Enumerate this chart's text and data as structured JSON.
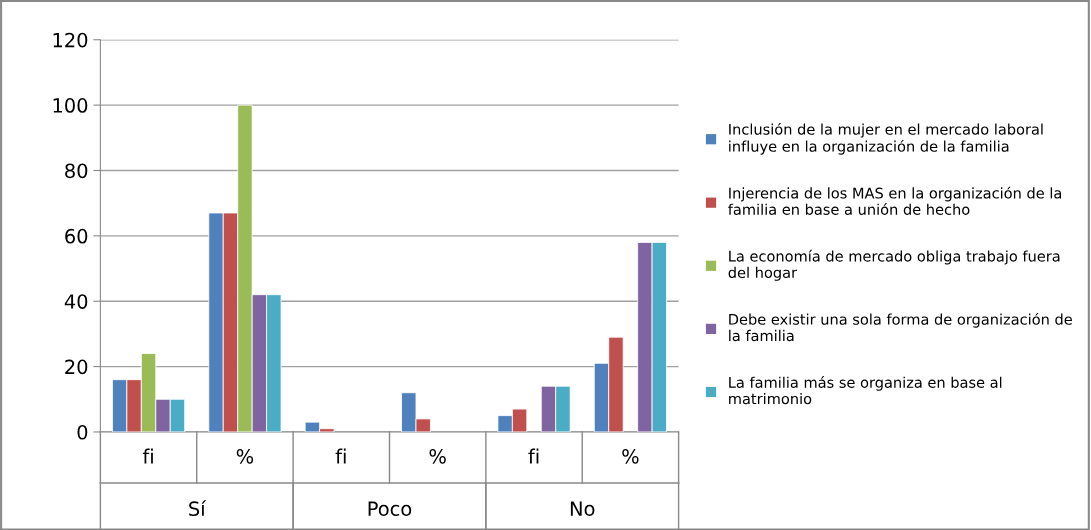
{
  "chart_data": {
    "type": "bar",
    "categories": [
      "fi",
      "%",
      "fi",
      "%",
      "fi",
      "%"
    ],
    "annotations": [
      "Sí",
      "Poco",
      "No"
    ],
    "series": [
      {
        "name": "Inclusión de la mujer en el mercado laboral influye en la organización de la familia",
        "color": "#4f81bd",
        "values": [
          16,
          67,
          3,
          12,
          5,
          21
        ]
      },
      {
        "name": "Injerencia de los MAS en la organización de la familia en base a unión de hecho",
        "color": "#c0504d",
        "values": [
          16,
          67,
          1,
          4,
          7,
          29
        ]
      },
      {
        "name": "La economía de mercado obliga trabajo fuera del hogar",
        "color": "#9bbb59",
        "values": [
          24,
          100,
          null,
          null,
          null,
          null
        ]
      },
      {
        "name": "Debe existir una sola forma de organización de la familia",
        "color": "#8064a2",
        "values": [
          10,
          42,
          null,
          null,
          14,
          58
        ]
      },
      {
        "name": "La familia más se organiza en base al matrimonio",
        "color": "#4bacc6",
        "values": [
          10,
          42,
          null,
          null,
          14,
          58
        ]
      }
    ],
    "ylim": [
      0,
      120
    ],
    "yticks": [
      0,
      20,
      40,
      60,
      80,
      100,
      120
    ],
    "grid": "y",
    "legend": "right"
  }
}
